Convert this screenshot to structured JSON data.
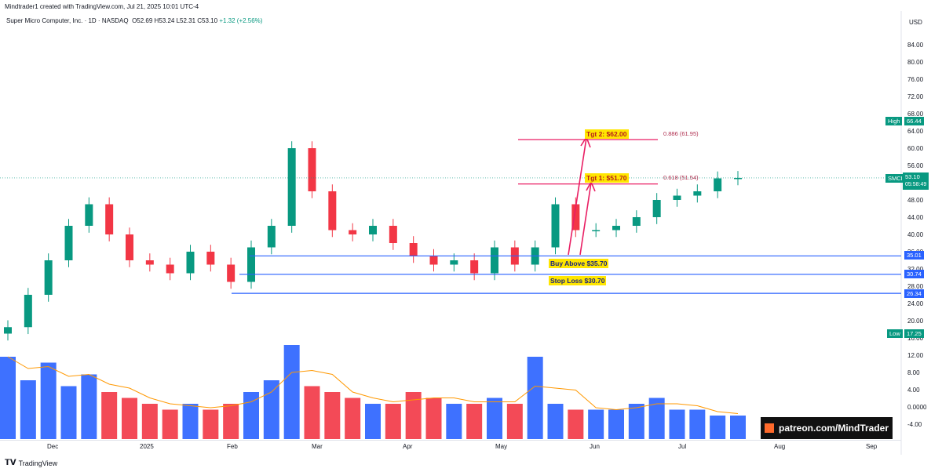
{
  "header": {
    "creator": "Mindtrader1 created with TradingView.com, Jul 21, 2025 10:01 UTC-4",
    "symbol": "Super Micro Computer, Inc. · 1D · NASDAQ",
    "open": "O52.69",
    "high": "H53.24",
    "low": "L52.31",
    "close": "C53.10",
    "change": "+1.32 (+2.56%)"
  },
  "axis": {
    "currency": "USD",
    "price_ticks": [
      "84.00",
      "80.00",
      "76.00",
      "72.00",
      "68.00",
      "64.00",
      "60.00",
      "56.00",
      "52.00",
      "48.00",
      "44.00",
      "40.00",
      "36.00",
      "32.00",
      "28.00",
      "24.00",
      "20.00",
      "16.00",
      "12.00",
      "8.00",
      "4.00",
      "0.0000",
      "-4.00"
    ],
    "time_labels": [
      "Dec",
      "2025",
      "Feb",
      "Mar",
      "Apr",
      "May",
      "Jun",
      "Jul",
      "Aug",
      "Sep"
    ]
  },
  "tags": {
    "high_label": "High",
    "high_value": "66.44",
    "low_label": "Low",
    "low_value": "17.25",
    "symbol_label": "SMCI",
    "last_price": "53.10",
    "countdown": "05:58:49",
    "level_35": "35.01",
    "level_30": "30.74",
    "level_26": "26.34"
  },
  "annotations": {
    "tgt2": "Tgt 2: $62.00",
    "tgt1": "Tgt 1: $51.70",
    "buy": "Buy Above $35.70",
    "stop": "Stop Loss $30.70",
    "fib886": "0.886 (61.95)",
    "fib618": "0.618 (51.54)"
  },
  "branding": {
    "logo": "TradingView",
    "patreon": "patreon.com/MindTrader"
  },
  "colors": {
    "up": "#089981",
    "down": "#f23645",
    "vol_up": "#2962ff",
    "vol_down": "#f23645",
    "ma": "#ff9800",
    "level": "#2962ff",
    "target": "#e91e63"
  },
  "chart_data": {
    "type": "candlestick",
    "ylim": [
      14,
      88
    ],
    "x": [
      "Nov 15",
      "Nov 20",
      "Nov 26",
      "Dec 3",
      "Dec 10",
      "Dec 17",
      "Dec 24",
      "Dec 31",
      "Jan 8",
      "Jan 15",
      "Jan 22",
      "Jan 29",
      "Feb 5",
      "Feb 12",
      "Feb 19",
      "Feb 26",
      "Mar 5",
      "Mar 12",
      "Mar 19",
      "Mar 26",
      "Apr 2",
      "Apr 9",
      "Apr 16",
      "Apr 23",
      "Apr 30",
      "May 7",
      "May 14",
      "May 21",
      "May 28",
      "Jun 4",
      "Jun 11",
      "Jun 18",
      "Jun 25",
      "Jul 2",
      "Jul 9",
      "Jul 16",
      "Jul 21"
    ],
    "close": [
      18.5,
      26,
      34,
      42,
      47,
      40,
      34,
      33,
      31,
      36,
      33,
      29,
      37,
      42,
      60,
      50,
      41,
      40,
      42,
      38,
      35,
      33,
      34,
      31,
      37,
      33,
      37,
      47,
      41,
      41,
      42,
      44,
      48,
      49,
      50,
      53,
      53.1
    ],
    "volume": [
      14,
      10,
      13,
      9,
      11,
      8,
      7,
      6,
      5,
      6,
      5,
      6,
      8,
      10,
      16,
      9,
      8,
      7,
      6,
      6,
      8,
      7,
      6,
      6,
      7,
      6,
      14,
      6,
      5,
      5,
      5,
      6,
      7,
      5,
      5,
      4,
      4
    ],
    "levels": [
      35.01,
      30.74,
      26.34
    ],
    "targets": [
      62.0,
      51.7
    ],
    "fibonacci": [
      {
        "ratio": "0.886",
        "value": 61.95
      },
      {
        "ratio": "0.618",
        "value": 51.54
      }
    ],
    "high": 66.44,
    "low": 17.25,
    "last": 53.1
  }
}
